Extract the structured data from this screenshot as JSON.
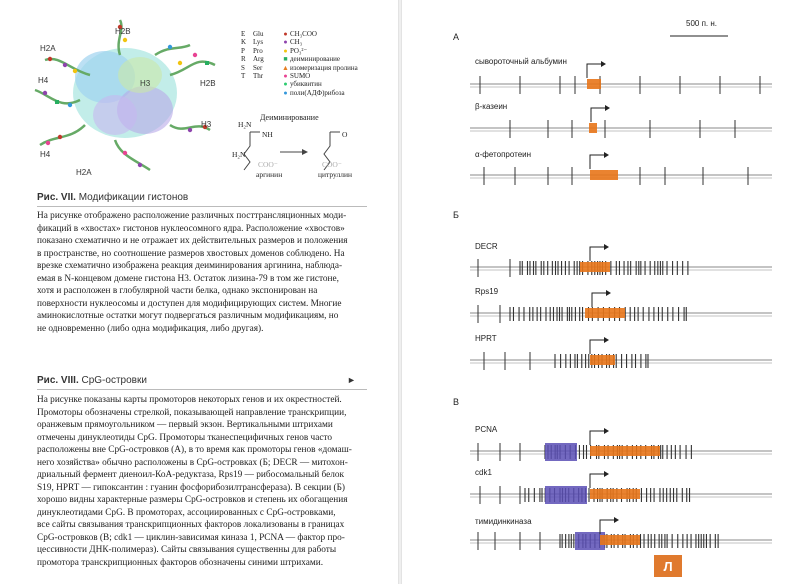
{
  "left_page": {
    "figure": {
      "histone_labels": [
        "H2B",
        "H2A",
        "H4",
        "H3",
        "H2B",
        "H3",
        "H4",
        "H2A"
      ],
      "legend": [
        {
          "letter": "E",
          "abbr": "Glu",
          "color": "#c0392b",
          "symbol": "●",
          "desc": "CH₃COO"
        },
        {
          "letter": "K",
          "abbr": "Lys",
          "color": "#8e44ad",
          "symbol": "●",
          "desc": "CH₃"
        },
        {
          "letter": "P",
          "abbr": "Pro",
          "color": "#f1c40f",
          "symbol": "●",
          "desc": "PO₃²⁻"
        },
        {
          "letter": "R",
          "abbr": "Arg",
          "color": "#27ae60",
          "symbol": "■",
          "desc": "деиминирование"
        },
        {
          "letter": "S",
          "abbr": "Ser",
          "color": "#e67e22",
          "symbol": "▲",
          "desc": "изомеризация пролина"
        },
        {
          "letter": "T",
          "abbr": "Thr",
          "color": "#e84393",
          "symbol": "●",
          "desc": "SUMO"
        },
        {
          "letter": "",
          "abbr": "",
          "color": "#2ecc71",
          "symbol": "●",
          "desc": "убиквитин"
        },
        {
          "letter": "",
          "abbr": "",
          "color": "#3498db",
          "symbol": "●",
          "desc": "поли(АДФ)рибоза"
        }
      ],
      "deimin_title": "Деиминирование",
      "chem": {
        "arginine": "аргинин",
        "citrulline": "цитруллин",
        "nh2_top": "H₂N",
        "nh": "NH",
        "o": "O",
        "h2n_bot": "H₂N",
        "coo": "COO⁻"
      }
    },
    "caption7": {
      "num": "Рис. VII.",
      "title": "Модификации гистонов"
    },
    "text7": [
      "На рисунке отображено расположение различных посттрансляционных моди-",
      "фикаций в «хвостах» гистонов нуклеосомного ядра. Расположение «хвостов»",
      "показано схематично и не отражает их действительных размеров и положения",
      "в пространстве, но соотношение размеров хвостовых доменов соблюдено. На",
      "врезке схематично изображена реакция деиминирования аргинина, наблюда-",
      "емая в N-концевом домене гистона Н3. Остаток лизина-79 в том же гистоне,",
      "хотя и расположен в глобулярной части белка, однако экспонирован на",
      "поверхности нуклеосомы и доступен для модифицирующих систем. Многие",
      "аминокислотные остатки могут подвергаться различным модификациям, но",
      "не одновременно (либо одна модификация, либо другая)."
    ],
    "caption8": {
      "num": "Рис. VIII.",
      "title": "CpG-островки",
      "arrow": "►"
    },
    "text8": [
      "На рисунке показаны карты промоторов некоторых генов и их окрестностей.",
      "Промоторы обозначены стрелкой, показывающей направление транскрипции,",
      "оранжевым прямоугольником — первый экзон. Вертикальными штрихами",
      "отмечены динуклеотиды CpG. Промоторы тканеспецифичных генов часто",
      "расположены вне CpG-островков (А), в то время как промоторы генов «домаш-",
      "него хозяйства» обычно расположены в CpG-островках (Б; DECR — митохон-",
      "дриальный фермент диеноил-КоА-редуктаза, Rps19 — рибосомальный белок",
      "S19, HPRT — гипоксантин : гуанин фосфорибозилтрансфераза). В секции (Б)",
      "хорошо видны характерные размеры CpG-островков и степень их обогащения",
      "динуклеотидами CpG. В промоторах, ассоциированных с CpG-островками,",
      "все сайты связывания транскрипционных факторов локализованы в границах",
      "CpG-островков (В; cdk1 — циклин-зависимая киназа 1, PCNA — фактор про-",
      "цессивности ДНК-полимераз). Сайты связывания существенны для работы",
      "промотора транскрипционных факторов обозначены синими штрихами."
    ]
  },
  "right_page": {
    "scale": "500 п. н.",
    "sections": [
      {
        "label": "А",
        "genes": [
          "сывороточный альбумин",
          "β-казеин",
          "α-фетопротеин"
        ]
      },
      {
        "label": "Б",
        "genes": [
          "DECR",
          "Rps19",
          "HPRT"
        ]
      },
      {
        "label": "В",
        "genes": [
          "PCNA",
          "cdk1",
          "тимидинкиназа"
        ]
      }
    ],
    "page_number": "Л"
  },
  "colors": {
    "exon": "#e8751a",
    "tf_site": "#5a4fb5",
    "cpg": "#333333",
    "line": "#888888"
  }
}
